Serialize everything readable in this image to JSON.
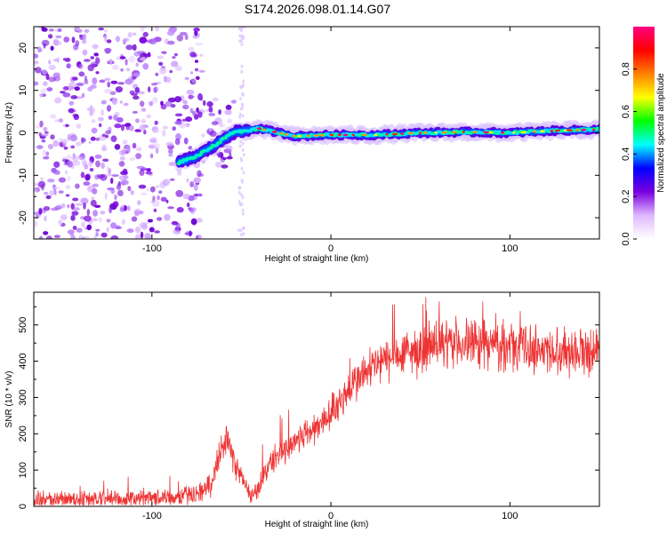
{
  "title": "S174.2026.098.01.14.G07",
  "chart_data": [
    {
      "type": "heatmap",
      "title": "S174.2026.098.01.14.G07",
      "xlabel": "Height of straight line (km)",
      "ylabel": "Frequency (Hz)",
      "xlim": [
        -166,
        150
      ],
      "ylim": [
        -25,
        25
      ],
      "x_ticks": [
        -100,
        0,
        100
      ],
      "y_ticks": [
        -20,
        -10,
        0,
        10,
        20
      ],
      "colorbar": {
        "label": "Normalized spectral amplitude",
        "range": [
          0,
          1
        ],
        "ticks": [
          0.0,
          0.2,
          0.4,
          0.6,
          0.8
        ],
        "tick_labels": [
          "0.0",
          "0.2",
          "0.4",
          "0.6",
          "0.8"
        ],
        "colors": [
          "#ffffff",
          "#e0b8ff",
          "#7a00e0",
          "#0000ff",
          "#00ffff",
          "#00ff00",
          "#ffff00",
          "#ff8000",
          "#ff0000",
          "#ff0080"
        ]
      },
      "ridge": [
        [
          -85,
          -7
        ],
        [
          -75,
          -5.5
        ],
        [
          -65,
          -3
        ],
        [
          -55,
          0
        ],
        [
          -40,
          1
        ],
        [
          -20,
          -0.8
        ],
        [
          0,
          -0.5
        ],
        [
          25,
          -0.5
        ],
        [
          50,
          0
        ],
        [
          75,
          0.2
        ],
        [
          100,
          0
        ],
        [
          125,
          0.5
        ],
        [
          150,
          0.8
        ]
      ],
      "noise_region": [
        -166,
        -72
      ]
    },
    {
      "type": "line",
      "xlabel": "Height of straight line (km)",
      "ylabel": "SNR (10 * v/v)",
      "xlim": [
        -166,
        150
      ],
      "ylim": [
        0,
        590
      ],
      "x_ticks": [
        -100,
        0,
        100
      ],
      "y_ticks": [
        0,
        100,
        200,
        300,
        400,
        500
      ],
      "series": [
        {
          "name": "SNR",
          "color": "#ee3333",
          "x": [
            -166,
            -120,
            -90,
            -75,
            -66,
            -62,
            -58,
            -54,
            -50,
            -46,
            -43,
            -40,
            -37,
            -34,
            -30,
            -25,
            -20,
            -15,
            -10,
            -5,
            0,
            5,
            10,
            15,
            20,
            25,
            30,
            40,
            50,
            60,
            70,
            80,
            90,
            100,
            110,
            120,
            130,
            140,
            150
          ],
          "values": [
            18,
            20,
            25,
            35,
            60,
            160,
            190,
            120,
            80,
            40,
            25,
            60,
            90,
            120,
            140,
            160,
            180,
            200,
            210,
            230,
            260,
            290,
            320,
            350,
            370,
            390,
            400,
            420,
            430,
            440,
            450,
            450,
            445,
            440,
            440,
            430,
            430,
            430,
            430
          ]
        }
      ],
      "noise_amplitude": 30
    }
  ]
}
